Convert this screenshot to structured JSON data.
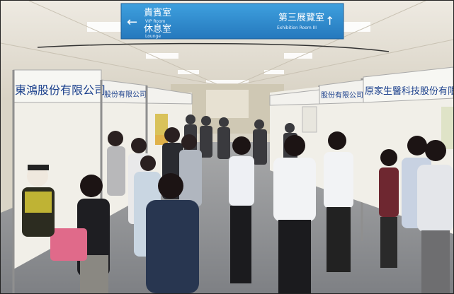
{
  "photo": {
    "sign": {
      "left_cn": "貴賓室",
      "left_en": "VIP Room",
      "left2_cn": "休息室",
      "left2_en": "Lounge",
      "right_cn": "第三展覽室",
      "right_en": "Exhibition Room III",
      "arrow_left": "←",
      "arrow_up": "↑"
    },
    "booths": {
      "left_company": "東鴻股份有限公司",
      "left_company2": "股份有限公司",
      "right_company": "股份有限公司",
      "right_company2": "原家生醫科技股份有限公"
    },
    "colors": {
      "sign_blue": "#2f8fd0",
      "ceiling": "#e8e4dc",
      "floor": "#8e9196",
      "booth_wall": "#f1efe8"
    }
  }
}
